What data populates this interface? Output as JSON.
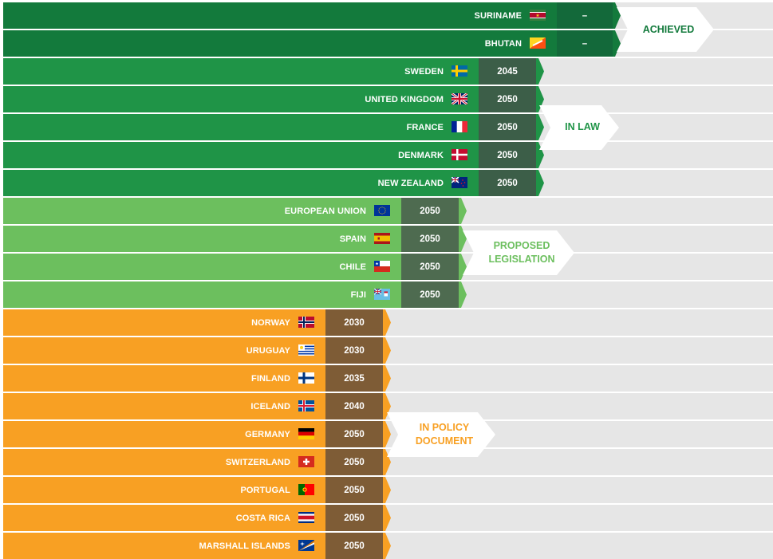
{
  "chart_data": {
    "type": "bar",
    "title": "",
    "xlabel": "",
    "ylabel": "",
    "groups": [
      {
        "status": "ACHIEVED",
        "color": "#137a3c",
        "year_box_color": "#13693a",
        "label_color": "#137a3c",
        "rows": [
          {
            "country": "SURINAME",
            "flag": "suriname-flag",
            "year": "–"
          },
          {
            "country": "BHUTAN",
            "flag": "bhutan-flag",
            "year": "–"
          }
        ]
      },
      {
        "status": "IN LAW",
        "color": "#1f9447",
        "year_box_color": "#3c5e48",
        "label_color": "#1f9447",
        "rows": [
          {
            "country": "SWEDEN",
            "flag": "sweden-flag",
            "year": "2045"
          },
          {
            "country": "UNITED KINGDOM",
            "flag": "uk-flag",
            "year": "2050"
          },
          {
            "country": "FRANCE",
            "flag": "france-flag",
            "year": "2050"
          },
          {
            "country": "DENMARK",
            "flag": "denmark-flag",
            "year": "2050"
          },
          {
            "country": "NEW ZEALAND",
            "flag": "new-zealand-flag",
            "year": "2050"
          }
        ]
      },
      {
        "status": "PROPOSED\nLEGISLATION",
        "color": "#6cbf5e",
        "year_box_color": "#4e6b50",
        "label_color": "#6cbf5e",
        "rows": [
          {
            "country": "EUROPEAN UNION",
            "flag": "eu-flag",
            "year": "2050"
          },
          {
            "country": "SPAIN",
            "flag": "spain-flag",
            "year": "2050"
          },
          {
            "country": "CHILE",
            "flag": "chile-flag",
            "year": "2050"
          },
          {
            "country": "FIJI",
            "flag": "fiji-flag",
            "year": "2050"
          }
        ]
      },
      {
        "status": "IN POLICY\nDOCUMENT",
        "color": "#f8a023",
        "year_box_color": "#7e5c36",
        "label_color": "#f8a023",
        "rows": [
          {
            "country": "NORWAY",
            "flag": "norway-flag",
            "year": "2030"
          },
          {
            "country": "URUGUAY",
            "flag": "uruguay-flag",
            "year": "2030"
          },
          {
            "country": "FINLAND",
            "flag": "finland-flag",
            "year": "2035"
          },
          {
            "country": "ICELAND",
            "flag": "iceland-flag",
            "year": "2040"
          },
          {
            "country": "GERMANY",
            "flag": "germany-flag",
            "year": "2050"
          },
          {
            "country": "SWITZERLAND",
            "flag": "switzerland-flag",
            "year": "2050"
          },
          {
            "country": "PORTUGAL",
            "flag": "portugal-flag",
            "year": "2050"
          },
          {
            "country": "COSTA RICA",
            "flag": "costa-rica-flag",
            "year": "2050"
          },
          {
            "country": "MARSHALL ISLANDS",
            "flag": "marshall-islands-flag",
            "year": "2050"
          }
        ]
      }
    ]
  }
}
